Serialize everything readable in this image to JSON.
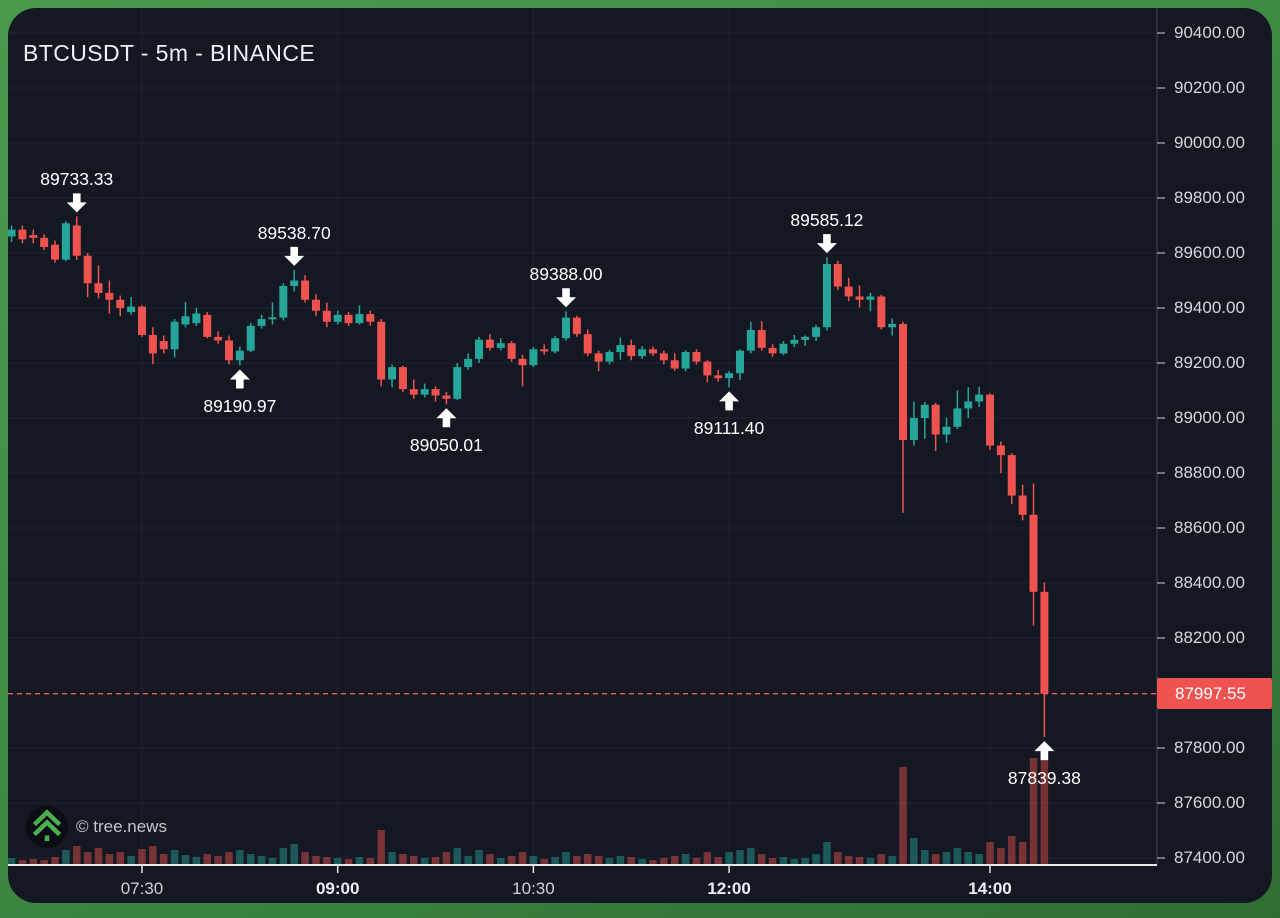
{
  "window": {
    "title": "BTCUSDT - 5m - BINANCE"
  },
  "watermark": {
    "copyright": "© tree.news",
    "icon": "tree-logo-icon"
  },
  "theme": {
    "frame_green": "#3f8b43",
    "panel_bg": "#141822",
    "grid": "#1e2431",
    "up": "#26a69a",
    "down": "#ef5350",
    "volume_opacity": 0.45,
    "axis_text": "#d2d5dc",
    "axis_text_bold": "#eceef2",
    "annotation_text": "#ffffff",
    "last_price_bg": "#ef5350",
    "last_price_text": "#ffffff",
    "axis_hline": "#e4e6e9",
    "axis_vline": "#2f3440",
    "tick_dash": "#9094a0",
    "dashed_line": "#f15b5b"
  },
  "chart_data": {
    "type": "candlestick",
    "title": "BTCUSDT - 5m - BINANCE",
    "symbol": "BTCUSDT",
    "interval": "5m",
    "exchange": "BINANCE",
    "start_time": "06:30",
    "minutes_per_candle": 5,
    "price_axis": {
      "tick_labels": [
        "90400.00",
        "90200.00",
        "90000.00",
        "89800.00",
        "89600.00",
        "89400.00",
        "89200.00",
        "89000.00",
        "88800.00",
        "88600.00",
        "88400.00",
        "88200.00",
        "87800.00",
        "87600.00",
        "87400.00"
      ],
      "range_top": 90400,
      "range_bottom": 87400,
      "step": 200,
      "last_price": {
        "value": 87997.55,
        "label": "87997.55"
      }
    },
    "time_axis": {
      "ticks": [
        {
          "label": "07:30",
          "candle_index": 12,
          "bold": false
        },
        {
          "label": "09:00",
          "candle_index": 30,
          "bold": true
        },
        {
          "label": "10:30",
          "candle_index": 48,
          "bold": false
        },
        {
          "label": "12:00",
          "candle_index": 66,
          "bold": true
        },
        {
          "label": "14:00",
          "candle_index": 90,
          "bold": true
        }
      ]
    },
    "candles": [
      [
        89660,
        89700,
        89640,
        89685,
        6
      ],
      [
        89685,
        89700,
        89635,
        89650,
        4
      ],
      [
        89665,
        89685,
        89635,
        89655,
        5
      ],
      [
        89655,
        89668,
        89610,
        89622,
        4
      ],
      [
        89630,
        89645,
        89565,
        89576,
        7
      ],
      [
        89576,
        89715,
        89570,
        89708,
        14
      ],
      [
        89700,
        89733.33,
        89575,
        89590,
        18
      ],
      [
        89590,
        89600,
        89440,
        89490,
        12
      ],
      [
        89490,
        89555,
        89435,
        89455,
        16
      ],
      [
        89455,
        89500,
        89380,
        89430,
        10
      ],
      [
        89430,
        89445,
        89370,
        89400,
        12
      ],
      [
        89385,
        89440,
        89375,
        89405,
        8
      ],
      [
        89405,
        89410,
        89295,
        89302,
        15
      ],
      [
        89302,
        89330,
        89196,
        89235,
        18
      ],
      [
        89280,
        89300,
        89235,
        89250,
        10
      ],
      [
        89250,
        89360,
        89220,
        89350,
        14
      ],
      [
        89340,
        89422,
        89330,
        89370,
        9
      ],
      [
        89345,
        89400,
        89335,
        89380,
        7
      ],
      [
        89375,
        89385,
        89290,
        89295,
        10
      ],
      [
        89295,
        89315,
        89270,
        89282,
        8
      ],
      [
        89282,
        89300,
        89195,
        89210,
        12
      ],
      [
        89210,
        89260,
        89190.97,
        89245,
        14
      ],
      [
        89245,
        89345,
        89240,
        89335,
        10
      ],
      [
        89335,
        89375,
        89325,
        89360,
        8
      ],
      [
        89360,
        89420,
        89340,
        89365,
        6
      ],
      [
        89365,
        89490,
        89355,
        89480,
        16
      ],
      [
        89480,
        89538.7,
        89460,
        89500,
        20
      ],
      [
        89500,
        89520,
        89420,
        89430,
        12
      ],
      [
        89430,
        89450,
        89370,
        89390,
        8
      ],
      [
        89390,
        89420,
        89330,
        89350,
        7
      ],
      [
        89350,
        89390,
        89340,
        89375,
        6
      ],
      [
        89375,
        89385,
        89335,
        89345,
        5
      ],
      [
        89345,
        89410,
        89340,
        89378,
        7
      ],
      [
        89378,
        89390,
        89335,
        89350,
        6
      ],
      [
        89350,
        89360,
        89115,
        89140,
        34
      ],
      [
        89140,
        89195,
        89112,
        89185,
        12
      ],
      [
        89185,
        89190,
        89095,
        89105,
        10
      ],
      [
        89105,
        89140,
        89070,
        89085,
        8
      ],
      [
        89085,
        89125,
        89075,
        89105,
        6
      ],
      [
        89105,
        89115,
        89060,
        89082,
        7
      ],
      [
        89082,
        89095,
        89050.01,
        89070,
        12
      ],
      [
        89070,
        89200,
        89065,
        89185,
        16
      ],
      [
        89185,
        89235,
        89175,
        89215,
        8
      ],
      [
        89215,
        89295,
        89200,
        89285,
        14
      ],
      [
        89285,
        89305,
        89245,
        89255,
        10
      ],
      [
        89255,
        89290,
        89245,
        89272,
        6
      ],
      [
        89272,
        89280,
        89205,
        89215,
        8
      ],
      [
        89215,
        89230,
        89115,
        89192,
        12
      ],
      [
        89192,
        89258,
        89185,
        89250,
        8
      ],
      [
        89250,
        89268,
        89230,
        89242,
        5
      ],
      [
        89242,
        89298,
        89235,
        89290,
        7
      ],
      [
        89290,
        89388.0,
        89282,
        89365,
        12
      ],
      [
        89365,
        89372,
        89295,
        89305,
        8
      ],
      [
        89305,
        89322,
        89225,
        89235,
        10
      ],
      [
        89235,
        89245,
        89170,
        89205,
        8
      ],
      [
        89205,
        89248,
        89195,
        89240,
        6
      ],
      [
        89240,
        89292,
        89212,
        89265,
        8
      ],
      [
        89265,
        89285,
        89210,
        89225,
        7
      ],
      [
        89225,
        89262,
        89215,
        89250,
        5
      ],
      [
        89250,
        89260,
        89225,
        89235,
        4
      ],
      [
        89235,
        89245,
        89195,
        89210,
        6
      ],
      [
        89210,
        89235,
        89172,
        89180,
        8
      ],
      [
        89180,
        89246,
        89170,
        89240,
        10
      ],
      [
        89240,
        89250,
        89195,
        89205,
        6
      ],
      [
        89205,
        89210,
        89130,
        89155,
        12
      ],
      [
        89155,
        89175,
        89132,
        89145,
        7
      ],
      [
        89145,
        89170,
        89111.4,
        89163,
        12
      ],
      [
        89163,
        89250,
        89138,
        89245,
        14
      ],
      [
        89245,
        89350,
        89235,
        89320,
        16
      ],
      [
        89320,
        89352,
        89245,
        89255,
        10
      ],
      [
        89255,
        89268,
        89222,
        89235,
        6
      ],
      [
        89235,
        89280,
        89228,
        89270,
        7
      ],
      [
        89270,
        89302,
        89258,
        89284,
        5
      ],
      [
        89284,
        89300,
        89262,
        89295,
        6
      ],
      [
        89295,
        89338,
        89280,
        89330,
        10
      ],
      [
        89330,
        89585.12,
        89318,
        89560,
        22
      ],
      [
        89560,
        89572,
        89465,
        89478,
        12
      ],
      [
        89478,
        89510,
        89425,
        89442,
        8
      ],
      [
        89442,
        89482,
        89402,
        89430,
        7
      ],
      [
        89430,
        89455,
        89388,
        89442,
        6
      ],
      [
        89442,
        89448,
        89322,
        89330,
        10
      ],
      [
        89330,
        89362,
        89300,
        89342,
        8
      ],
      [
        89342,
        89350,
        88655,
        88920,
        97
      ],
      [
        88920,
        89060,
        88900,
        89000,
        26
      ],
      [
        89000,
        89058,
        88925,
        89048,
        14
      ],
      [
        89048,
        89055,
        88880,
        88940,
        10
      ],
      [
        88940,
        89000,
        88910,
        88968,
        12
      ],
      [
        88968,
        89100,
        88960,
        89035,
        16
      ],
      [
        89035,
        89112,
        89000,
        89060,
        12
      ],
      [
        89060,
        89114,
        89040,
        89085,
        10
      ],
      [
        89085,
        89090,
        88885,
        88900,
        22
      ],
      [
        88900,
        88915,
        88800,
        88865,
        16
      ],
      [
        88865,
        88872,
        88688,
        88718,
        28
      ],
      [
        88718,
        88758,
        88628,
        88648,
        22
      ],
      [
        88648,
        88762,
        88245,
        88368,
        106
      ],
      [
        88368,
        88402,
        87839.38,
        87997.55,
        110
      ]
    ],
    "annotations": [
      {
        "label": "89733.33",
        "price": 89733.33,
        "candle_index": 6,
        "direction": "down"
      },
      {
        "label": "89190.97",
        "price": 89190.97,
        "candle_index": 21,
        "direction": "up"
      },
      {
        "label": "89538.70",
        "price": 89538.7,
        "candle_index": 26,
        "direction": "down"
      },
      {
        "label": "89050.01",
        "price": 89050.01,
        "candle_index": 40,
        "direction": "up"
      },
      {
        "label": "89388.00",
        "price": 89388.0,
        "candle_index": 51,
        "direction": "down"
      },
      {
        "label": "89111.40",
        "price": 89111.4,
        "candle_index": 66,
        "direction": "up"
      },
      {
        "label": "89585.12",
        "price": 89585.12,
        "candle_index": 75,
        "direction": "down"
      },
      {
        "label": "87839.38",
        "price": 87839.38,
        "candle_index": 95,
        "direction": "up"
      }
    ]
  }
}
